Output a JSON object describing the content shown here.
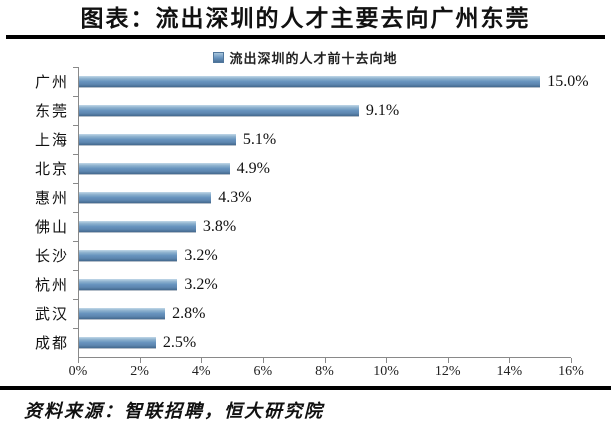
{
  "header": {
    "title": "图表：流出深圳的人才主要去向广州东莞"
  },
  "chart_data": {
    "type": "bar",
    "orientation": "horizontal",
    "title": "图表：流出深圳的人才主要去向广州东莞",
    "legend": "流出深圳的人才前十去向地",
    "legend_position": "top",
    "categories": [
      "广州",
      "东莞",
      "上海",
      "北京",
      "惠州",
      "佛山",
      "长沙",
      "杭州",
      "武汉",
      "成都"
    ],
    "values": [
      15.0,
      9.1,
      5.1,
      4.9,
      4.3,
      3.8,
      3.2,
      3.2,
      2.8,
      2.5
    ],
    "value_labels": [
      "15.0%",
      "9.1%",
      "5.1%",
      "4.9%",
      "4.3%",
      "3.8%",
      "3.2%",
      "3.2%",
      "2.8%",
      "2.5%"
    ],
    "xlim": [
      0,
      16
    ],
    "x_tick_labels": [
      "0%",
      "2%",
      "4%",
      "6%",
      "8%",
      "10%",
      "12%",
      "14%",
      "16%"
    ],
    "grid": false,
    "colors": {
      "bar": "#6793BE",
      "bar_gradient_top": "#C2D8E8",
      "bar_gradient_bottom": "#44688E",
      "axis": "#898989",
      "rule": "#000000",
      "text": "#111111"
    }
  },
  "footer": {
    "source": "资料来源：智联招聘，恒大研究院"
  }
}
